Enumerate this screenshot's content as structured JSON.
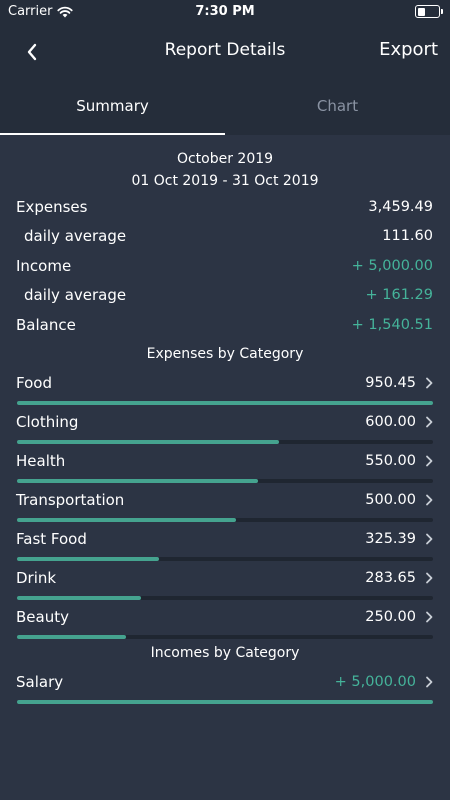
{
  "status_bar": {
    "carrier": "Carrier",
    "time": "7:30 PM"
  },
  "nav": {
    "title": "Report Details",
    "export_label": "Export"
  },
  "tabs": [
    {
      "label": "Summary",
      "active": true
    },
    {
      "label": "Chart",
      "active": false
    }
  ],
  "period": {
    "month": "October 2019",
    "range": "01 Oct 2019 - 31 Oct 2019"
  },
  "summary": {
    "expenses": {
      "label": "Expenses",
      "value": "3,459.49"
    },
    "expenses_daily": {
      "label": "daily average",
      "value": "111.60"
    },
    "income": {
      "label": "Income",
      "value": "+ 5,000.00"
    },
    "income_daily": {
      "label": "daily average",
      "value": "+ 161.29"
    },
    "balance": {
      "label": "Balance",
      "value": "+ 1,540.51"
    }
  },
  "expenses_title": "Expenses by Category",
  "expense_categories": [
    {
      "name": "Food",
      "amount": "950.45",
      "fraction": 1.0
    },
    {
      "name": "Clothing",
      "amount": "600.00",
      "fraction": 0.631
    },
    {
      "name": "Health",
      "amount": "550.00",
      "fraction": 0.579
    },
    {
      "name": "Transportation",
      "amount": "500.00",
      "fraction": 0.526
    },
    {
      "name": "Fast Food",
      "amount": "325.39",
      "fraction": 0.342
    },
    {
      "name": "Drink",
      "amount": "283.65",
      "fraction": 0.298
    },
    {
      "name": "Beauty",
      "amount": "250.00",
      "fraction": 0.263
    }
  ],
  "incomes_title": "Incomes by Category",
  "income_categories": [
    {
      "name": "Salary",
      "amount": "+ 5,000.00",
      "fraction": 1.0
    }
  ],
  "colors": {
    "background": "#2c3444",
    "header": "#252d3a",
    "accent_green": "#45b39a",
    "bar_fill": "#45a38f",
    "bar_track": "#1f2631"
  },
  "icons": {
    "back": "chevron-left-icon",
    "row_arrow": "chevron-right-icon",
    "wifi": "wifi-icon",
    "battery": "battery-icon"
  }
}
